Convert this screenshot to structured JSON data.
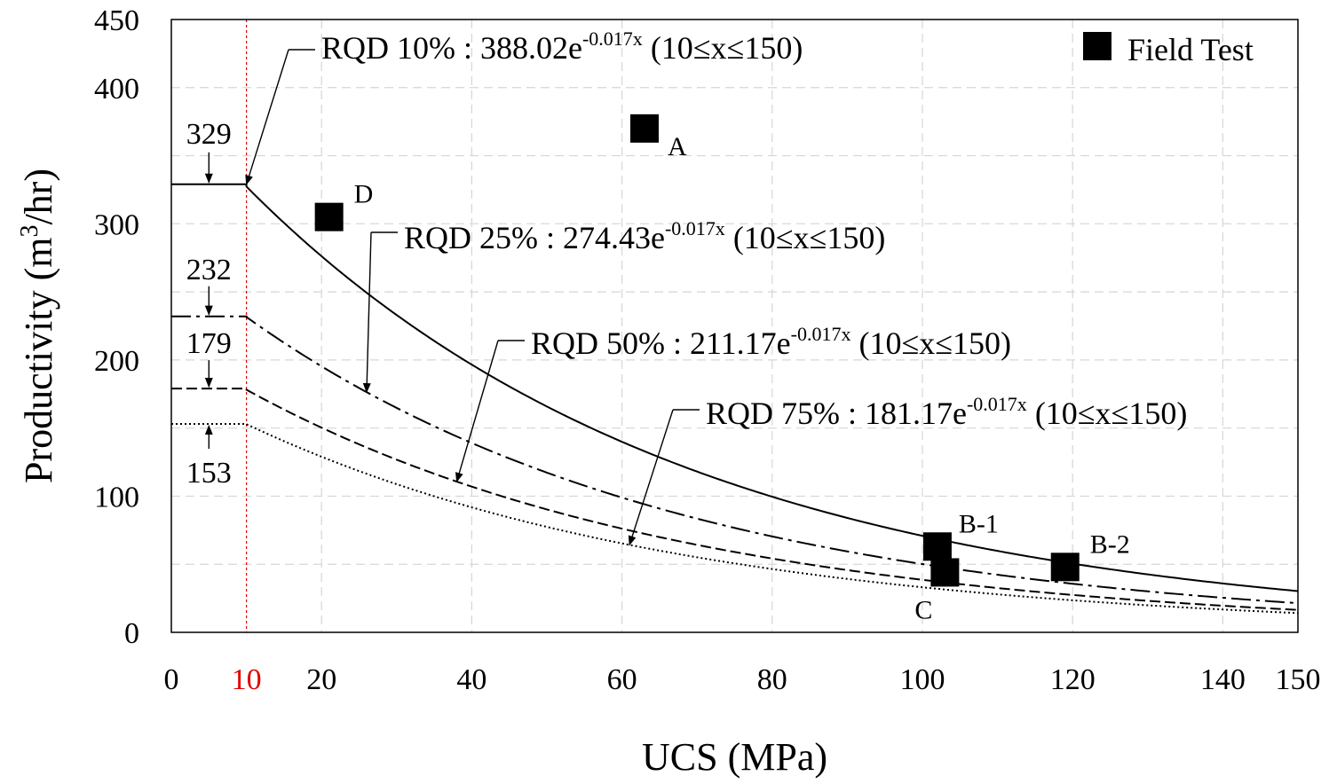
{
  "chart_data": {
    "type": "line",
    "xlabel": "UCS (MPa)",
    "ylabel_main": "Productivity (m",
    "ylabel_sup": "3",
    "ylabel_end": "/hr)",
    "xlim": [
      0,
      150
    ],
    "ylim": [
      0,
      450
    ],
    "x_ticks": [
      {
        "value": 0,
        "label": "0",
        "color": "#000000"
      },
      {
        "value": 10,
        "label": "10",
        "color": "#e00000"
      },
      {
        "value": 20,
        "label": "20",
        "color": "#000000"
      },
      {
        "value": 40,
        "label": "40",
        "color": "#000000"
      },
      {
        "value": 60,
        "label": "60",
        "color": "#000000"
      },
      {
        "value": 80,
        "label": "80",
        "color": "#000000"
      },
      {
        "value": 100,
        "label": "100",
        "color": "#000000"
      },
      {
        "value": 120,
        "label": "120",
        "color": "#000000"
      },
      {
        "value": 140,
        "label": "140",
        "color": "#000000"
      },
      {
        "value": 150,
        "label": "150",
        "color": "#000000"
      }
    ],
    "y_ticks": [
      {
        "value": 0,
        "label": "0"
      },
      {
        "value": 100,
        "label": "100"
      },
      {
        "value": 200,
        "label": "200"
      },
      {
        "value": 300,
        "label": "300"
      },
      {
        "value": 400,
        "label": "400"
      },
      {
        "value": 450,
        "label": "450"
      }
    ],
    "grid_x": [
      20,
      40,
      60,
      80,
      100,
      120,
      140
    ],
    "grid_y": [
      50,
      100,
      150,
      200,
      250,
      300,
      350,
      400
    ],
    "cutoff_x": 10,
    "cutoff_color": "#e00000",
    "series": [
      {
        "name": "RQD 10%",
        "coef": 388.02,
        "k": 0.017,
        "plateau": 329,
        "plateau_label": "329",
        "dash": "",
        "eq_prefix": "RQD 10% : 388.02e",
        "eq_exp": "-0.017x",
        "eq_suffix": " (10≤x≤150)",
        "arrow_target_x": 10
      },
      {
        "name": "RQD 25%",
        "coef": 274.43,
        "k": 0.017,
        "plateau": 232,
        "plateau_label": "232",
        "dash": "22 6 4 6",
        "eq_prefix": "RQD 25% : 274.43e",
        "eq_exp": "-0.017x",
        "eq_suffix": " (10≤x≤150)",
        "arrow_target_x": 26
      },
      {
        "name": "RQD 50%",
        "coef": 211.17,
        "k": 0.017,
        "plateau": 179,
        "plateau_label": "179",
        "dash": "12 5",
        "eq_prefix": "RQD 50% : 211.17e",
        "eq_exp": "-0.017x",
        "eq_suffix": " (10≤x≤150)",
        "arrow_target_x": 38
      },
      {
        "name": "RQD 75%",
        "coef": 181.17,
        "k": 0.017,
        "plateau": 153,
        "plateau_label": "153",
        "dash": "2 3",
        "eq_prefix": "RQD 75% : 181.17e",
        "eq_exp": "-0.017x",
        "eq_suffix": " (10≤x≤150)",
        "arrow_target_x": 61
      }
    ],
    "field_tests": [
      {
        "label": "A",
        "x": 63,
        "y": 370
      },
      {
        "label": "D",
        "x": 21,
        "y": 305
      },
      {
        "label": "B-1",
        "x": 102,
        "y": 63
      },
      {
        "label": "C",
        "x": 103,
        "y": 44
      },
      {
        "label": "B-2",
        "x": 119,
        "y": 48
      }
    ],
    "legend": {
      "label": "Field Test",
      "position": "top-right"
    }
  }
}
